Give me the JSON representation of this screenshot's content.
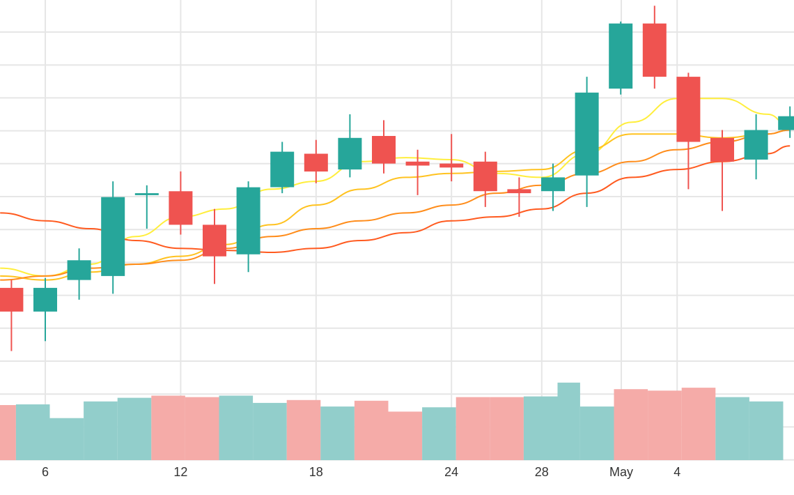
{
  "chart_data": {
    "type": "candlestick",
    "x_tick_labels": [
      {
        "day": 6,
        "label": "6"
      },
      {
        "day": 12,
        "label": "12"
      },
      {
        "day": 18,
        "label": "18"
      },
      {
        "day": 24,
        "label": "24"
      },
      {
        "day": 28,
        "label": "28"
      },
      {
        "day": 29.5,
        "label": "May"
      },
      {
        "day": 34,
        "label": "4"
      }
    ],
    "y_price_range": [
      0,
      100
    ],
    "candles": [
      {
        "day": 4.5,
        "open": 38,
        "close": 32,
        "high": 40,
        "low": 22
      },
      {
        "day": 6,
        "open": 32,
        "close": 38,
        "high": 40.5,
        "low": 24.5
      },
      {
        "day": 7.5,
        "open": 40,
        "close": 45,
        "high": 48,
        "low": 35
      },
      {
        "day": 9,
        "open": 41,
        "close": 61,
        "high": 65,
        "low": 36.5
      },
      {
        "day": 10.5,
        "open": 61.5,
        "close": 62,
        "high": 64,
        "low": 53
      },
      {
        "day": 12,
        "open": 62.5,
        "close": 54,
        "high": 67.5,
        "low": 51.5
      },
      {
        "day": 13.5,
        "open": 54,
        "close": 46,
        "high": 58,
        "low": 39
      },
      {
        "day": 15,
        "open": 46.5,
        "close": 63.5,
        "high": 65,
        "low": 42
      },
      {
        "day": 16.5,
        "open": 63.5,
        "close": 72.5,
        "high": 75,
        "low": 62
      },
      {
        "day": 18,
        "open": 72,
        "close": 67.5,
        "high": 75.5,
        "low": 64.5
      },
      {
        "day": 19.5,
        "open": 68,
        "close": 76,
        "high": 82,
        "low": 66
      },
      {
        "day": 21,
        "open": 76.5,
        "close": 69.5,
        "high": 80.5,
        "low": 67
      },
      {
        "day": 22.5,
        "open": 70,
        "close": 69,
        "high": 73,
        "low": 61.5
      },
      {
        "day": 24,
        "open": 69.5,
        "close": 68.5,
        "high": 77,
        "low": 65
      },
      {
        "day": 25.5,
        "open": 70,
        "close": 62.5,
        "high": 72.5,
        "low": 58.5
      },
      {
        "day": 27,
        "open": 63,
        "close": 62,
        "high": 66,
        "low": 56
      },
      {
        "day": 28.5,
        "open": 62.5,
        "close": 66,
        "high": 69.5,
        "low": 57.5
      },
      {
        "day": 30,
        "open": 66.5,
        "close": 87.5,
        "high": 91.5,
        "low": 58.5
      },
      {
        "day": 31.5,
        "open": 88.5,
        "close": 105,
        "high": 105.5,
        "low": 87
      },
      {
        "day": 33,
        "open": 105,
        "close": 91.5,
        "high": 109.5,
        "low": 88.5
      },
      {
        "day": 34.5,
        "open": 91.5,
        "close": 75,
        "high": 92.5,
        "low": 63
      },
      {
        "day": 36,
        "open": 76,
        "close": 70,
        "high": 78,
        "low": 57.5
      },
      {
        "day": 37.5,
        "open": 70.5,
        "close": 78,
        "high": 82,
        "low": 65.5
      },
      {
        "day": 39,
        "open": 78,
        "close": 81.5,
        "high": 84,
        "low": 76
      }
    ],
    "moving_averages": [
      {
        "color": "#ffee3c",
        "values": [
          [
            4,
            43
          ],
          [
            6,
            41
          ],
          [
            8,
            44
          ],
          [
            10,
            51
          ],
          [
            12,
            56
          ],
          [
            14,
            58
          ],
          [
            16,
            63
          ],
          [
            18,
            65
          ],
          [
            20,
            70
          ],
          [
            22,
            71
          ],
          [
            24,
            70.5
          ],
          [
            26,
            67
          ],
          [
            28,
            66
          ],
          [
            30,
            72
          ],
          [
            32,
            80
          ],
          [
            34,
            86
          ],
          [
            36,
            86
          ],
          [
            38,
            82
          ],
          [
            39,
            79
          ]
        ]
      },
      {
        "color": "#ffc21f",
        "values": [
          [
            4,
            41
          ],
          [
            6,
            40
          ],
          [
            8,
            42
          ],
          [
            10,
            44
          ],
          [
            12,
            46
          ],
          [
            14,
            49
          ],
          [
            16,
            54
          ],
          [
            18,
            59
          ],
          [
            20,
            63
          ],
          [
            22,
            66
          ],
          [
            24,
            67
          ],
          [
            26,
            67.5
          ],
          [
            28,
            68
          ],
          [
            30,
            73
          ],
          [
            32,
            77
          ],
          [
            34,
            77
          ],
          [
            36,
            76
          ],
          [
            38,
            77
          ],
          [
            39,
            78
          ]
        ]
      },
      {
        "color": "#ff8c1a",
        "values": [
          [
            4,
            40
          ],
          [
            6,
            41
          ],
          [
            8,
            43
          ],
          [
            10,
            44
          ],
          [
            12,
            45
          ],
          [
            14,
            48
          ],
          [
            16,
            51
          ],
          [
            18,
            53
          ],
          [
            20,
            55
          ],
          [
            22,
            57
          ],
          [
            24,
            59
          ],
          [
            26,
            62
          ],
          [
            28,
            64
          ],
          [
            30,
            67
          ],
          [
            32,
            70
          ],
          [
            34,
            73
          ],
          [
            36,
            75
          ],
          [
            38,
            77
          ],
          [
            39,
            78
          ]
        ]
      },
      {
        "color": "#ff5a1f",
        "values": [
          [
            4,
            57
          ],
          [
            6,
            55
          ],
          [
            8,
            53
          ],
          [
            10,
            50
          ],
          [
            12,
            48
          ],
          [
            14,
            47.5
          ],
          [
            16,
            47
          ],
          [
            18,
            48
          ],
          [
            20,
            50
          ],
          [
            22,
            52
          ],
          [
            24,
            55
          ],
          [
            26,
            56
          ],
          [
            28,
            58
          ],
          [
            30,
            62
          ],
          [
            32,
            66
          ],
          [
            34,
            68
          ],
          [
            36,
            70
          ],
          [
            38,
            72
          ],
          [
            39,
            74
          ]
        ]
      }
    ],
    "volume_bars": [
      {
        "day_start": 3.9,
        "day_end": 4.7,
        "volume": 76,
        "direction": "down"
      },
      {
        "day_start": 4.7,
        "day_end": 6.2,
        "volume": 77,
        "direction": "up"
      },
      {
        "day_start": 6.2,
        "day_end": 7.7,
        "volume": 58,
        "direction": "up"
      },
      {
        "day_start": 7.7,
        "day_end": 9.2,
        "volume": 81,
        "direction": "up"
      },
      {
        "day_start": 9.2,
        "day_end": 10.7,
        "volume": 86,
        "direction": "up"
      },
      {
        "day_start": 10.7,
        "day_end": 12.2,
        "volume": 89,
        "direction": "down"
      },
      {
        "day_start": 12.2,
        "day_end": 13.7,
        "volume": 87,
        "direction": "down"
      },
      {
        "day_start": 13.7,
        "day_end": 15.2,
        "volume": 89,
        "direction": "up"
      },
      {
        "day_start": 15.2,
        "day_end": 16.7,
        "volume": 79,
        "direction": "up"
      },
      {
        "day_start": 16.7,
        "day_end": 18.2,
        "volume": 83,
        "direction": "down"
      },
      {
        "day_start": 18.2,
        "day_end": 19.7,
        "volume": 74,
        "direction": "up"
      },
      {
        "day_start": 19.7,
        "day_end": 21.2,
        "volume": 82,
        "direction": "down"
      },
      {
        "day_start": 21.2,
        "day_end": 22.7,
        "volume": 67,
        "direction": "down"
      },
      {
        "day_start": 22.7,
        "day_end": 24.2,
        "volume": 73,
        "direction": "up"
      },
      {
        "day_start": 24.2,
        "day_end": 25.7,
        "volume": 87,
        "direction": "down"
      },
      {
        "day_start": 25.7,
        "day_end": 27.2,
        "volume": 87,
        "direction": "down"
      },
      {
        "day_start": 27.2,
        "day_end": 28.7,
        "volume": 88,
        "direction": "up"
      },
      {
        "day_start": 28.7,
        "day_end": 29.7,
        "volume": 107,
        "direction": "up"
      },
      {
        "day_start": 29.7,
        "day_end": 31.2,
        "volume": 74,
        "direction": "up"
      },
      {
        "day_start": 31.2,
        "day_end": 32.7,
        "volume": 98,
        "direction": "down"
      },
      {
        "day_start": 32.7,
        "day_end": 34.2,
        "volume": 96,
        "direction": "down"
      },
      {
        "day_start": 34.2,
        "day_end": 35.7,
        "volume": 100,
        "direction": "down"
      },
      {
        "day_start": 35.7,
        "day_end": 37.2,
        "volume": 87,
        "direction": "up"
      },
      {
        "day_start": 37.2,
        "day_end": 38.7,
        "volume": 81,
        "direction": "up"
      }
    ],
    "volume_range": [
      0,
      110
    ],
    "colors": {
      "up": "#26a69a",
      "down": "#ef5350",
      "up_volume": "#92cecb",
      "down_volume": "#f5aba8",
      "grid": "#e6e6e6",
      "axis_text": "#333333"
    },
    "grid": true
  }
}
